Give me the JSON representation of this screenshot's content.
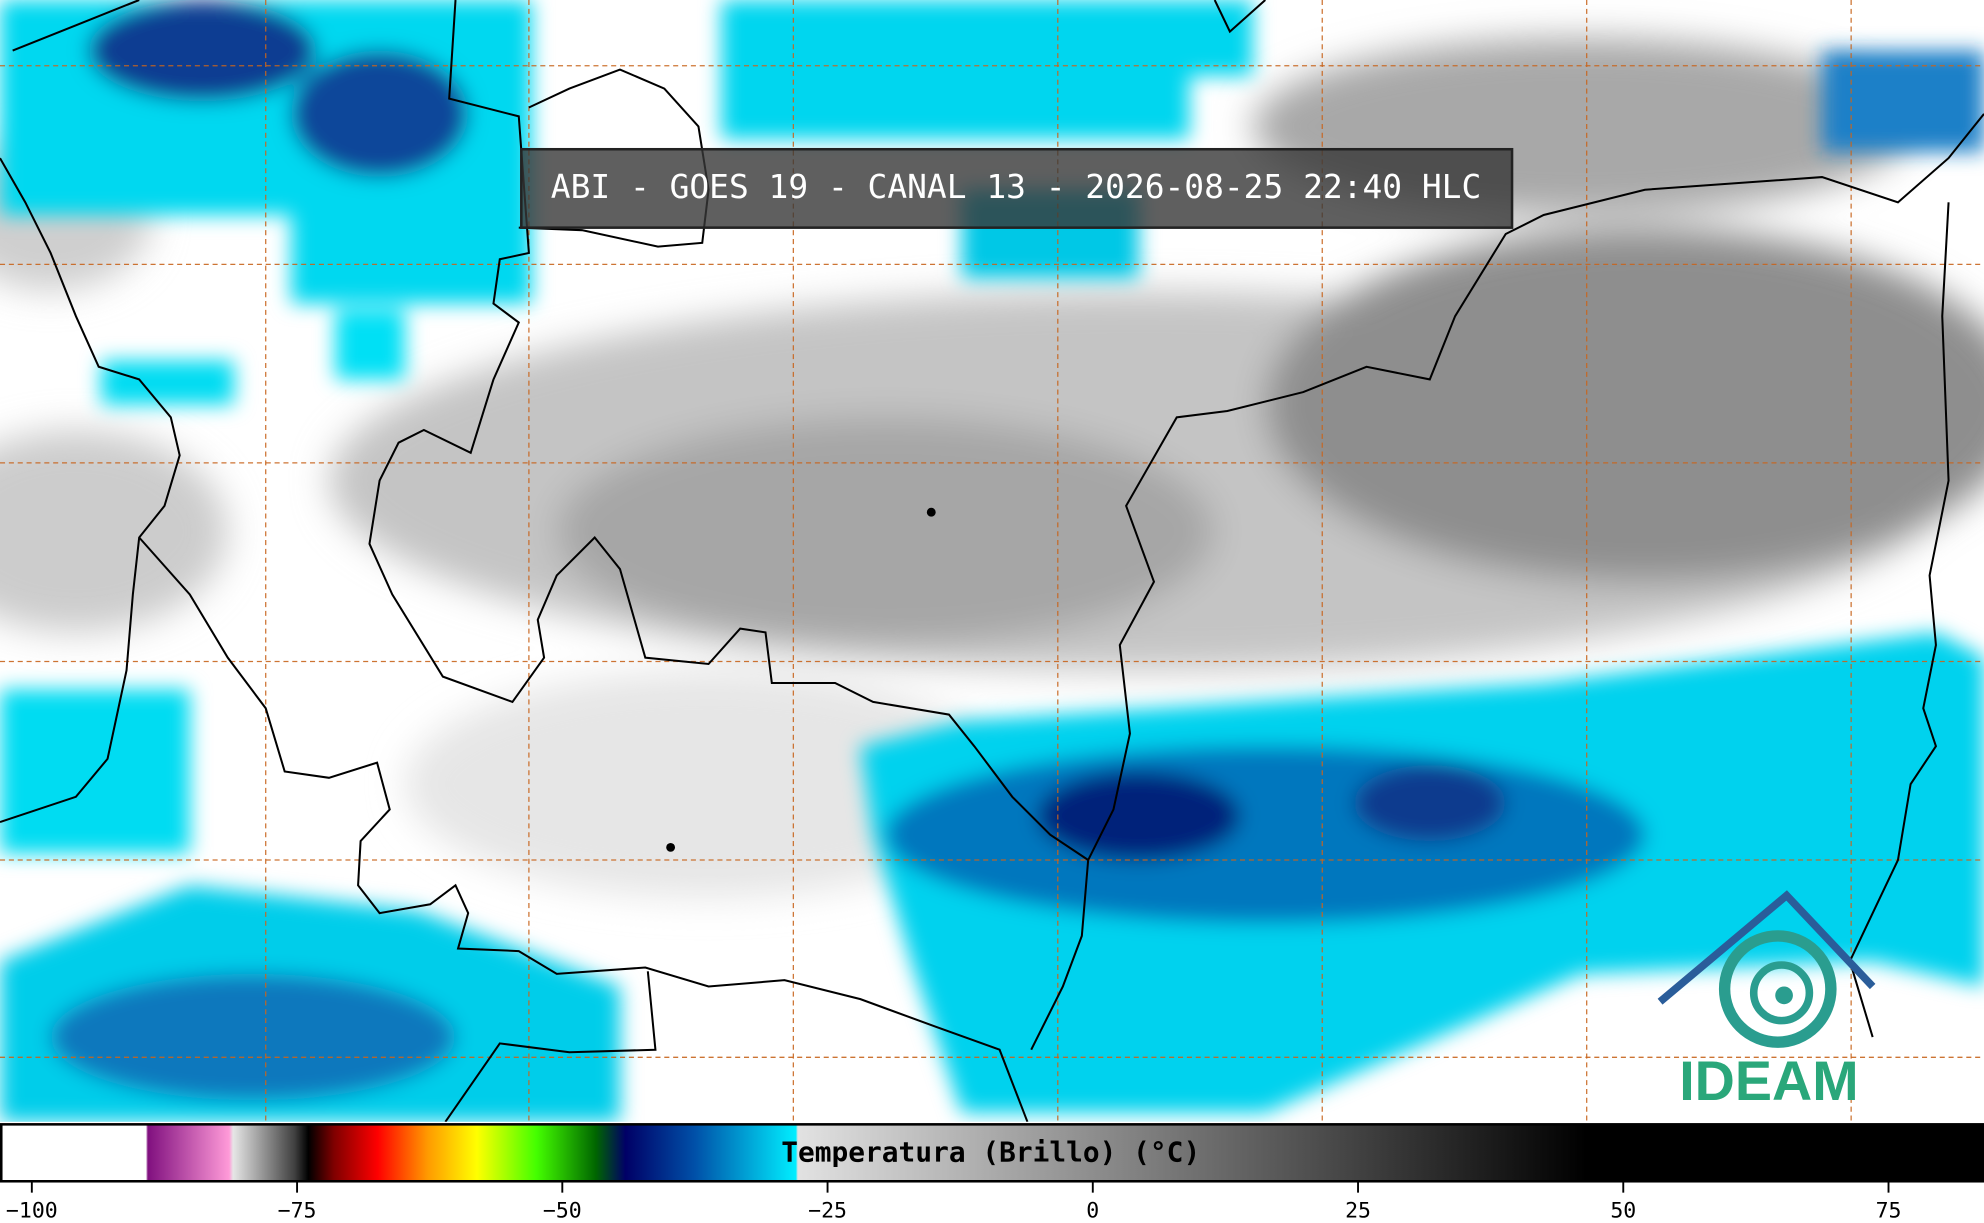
{
  "header": {
    "title": "ABI - GOES 19 - CANAL 13 - 2026-08-25 22:40 HLC"
  },
  "colorbar": {
    "label": "Temperatura (Brillo) (°C)",
    "lim": [
      -103,
      84
    ],
    "ticks": [
      {
        "value": -100,
        "label": "−100"
      },
      {
        "value": -75,
        "label": "−75"
      },
      {
        "value": -50,
        "label": "−50"
      },
      {
        "value": -25,
        "label": "−25"
      },
      0,
      25,
      50,
      75
    ]
  },
  "logo": {
    "text": "IDEAM"
  }
}
